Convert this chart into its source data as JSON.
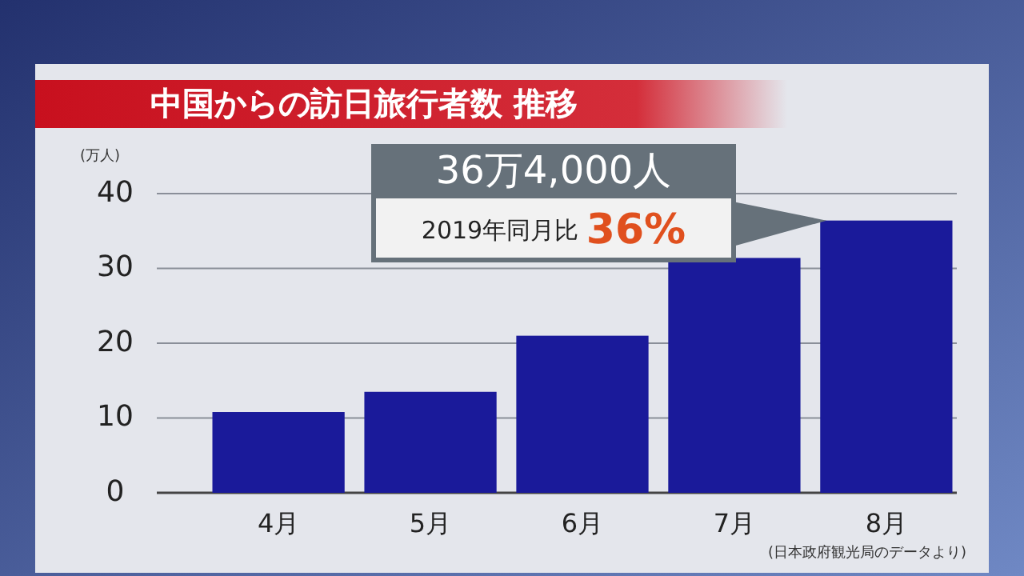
{
  "chart_data": {
    "type": "bar",
    "title": "中国からの訪日旅行者数 推移",
    "ylabel": "(万人)",
    "categories": [
      "4月",
      "5月",
      "6月",
      "7月",
      "8月"
    ],
    "values": [
      10.8,
      13.5,
      21.0,
      31.4,
      36.4
    ],
    "color": "#1a1a9a",
    "ylim": [
      0,
      40
    ],
    "yticks": [
      0,
      10,
      20,
      30,
      40
    ],
    "grid": "y",
    "annotations": [
      "36万4,000人",
      "2019年同月比 36%",
      "(日本政府観光局のデータより)"
    ]
  }
}
